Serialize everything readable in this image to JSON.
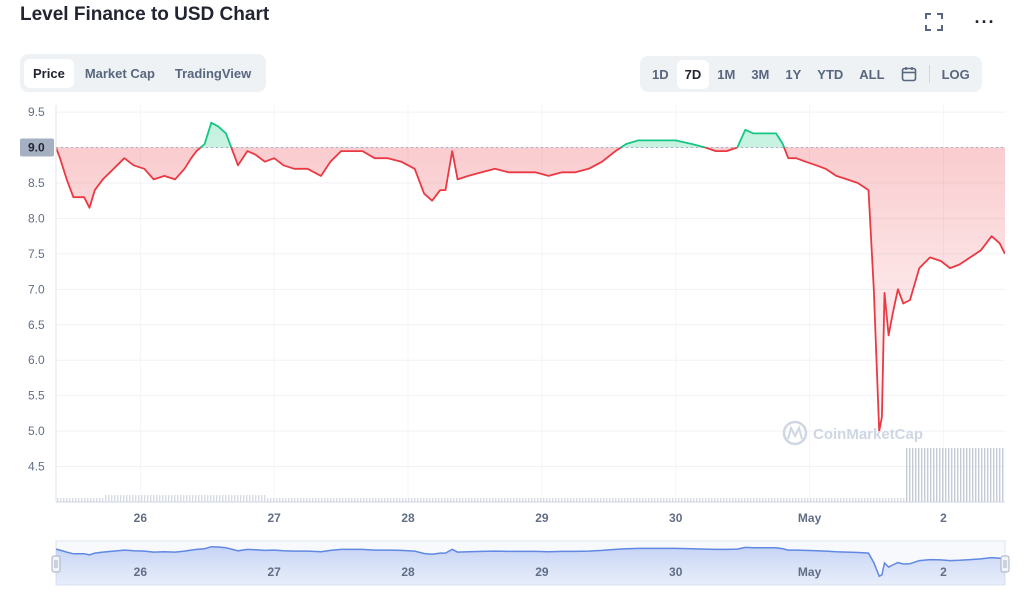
{
  "title": "Level Finance to USD Chart",
  "icons": {
    "fullscreen": "fullscreen-icon",
    "more": "more-horizontal-icon",
    "calendar": "calendar-icon",
    "watermark_logo": "coinmarketcap-logo-icon"
  },
  "more_label": "···",
  "tabs": [
    {
      "label": "Price",
      "active": true
    },
    {
      "label": "Market Cap",
      "active": false
    },
    {
      "label": "TradingView",
      "active": false
    }
  ],
  "ranges": [
    {
      "label": "1D",
      "active": false
    },
    {
      "label": "7D",
      "active": true
    },
    {
      "label": "1M",
      "active": false
    },
    {
      "label": "3M",
      "active": false
    },
    {
      "label": "1Y",
      "active": false
    },
    {
      "label": "YTD",
      "active": false
    },
    {
      "label": "ALL",
      "active": false
    }
  ],
  "log_label": "LOG",
  "watermark": "CoinMarketCap",
  "colors": {
    "up": "#16c784",
    "down": "#ea3943",
    "navigator": "#6188e3",
    "reference": "#222531"
  },
  "chart_data": {
    "type": "line",
    "y_ticks": [
      "9.5",
      "9.0",
      "8.5",
      "8.0",
      "7.5",
      "7.0",
      "6.5",
      "6.0",
      "5.5",
      "5.0",
      "4.5"
    ],
    "reference_label": "9.0",
    "reference_value": 9.0,
    "ylim": [
      4.0,
      9.6
    ],
    "x_ticks": [
      {
        "label": "26",
        "x": 1
      },
      {
        "label": "27",
        "x": 2
      },
      {
        "label": "28",
        "x": 3
      },
      {
        "label": "29",
        "x": 4
      },
      {
        "label": "30",
        "x": 5
      },
      {
        "label": "May",
        "x": 6
      },
      {
        "label": "2",
        "x": 7
      }
    ],
    "xlim": [
      0.37,
      7.46
    ],
    "grid": true,
    "series": [
      {
        "points": [
          [
            0.37,
            9.0
          ],
          [
            0.4,
            8.85
          ],
          [
            0.45,
            8.55
          ],
          [
            0.5,
            8.3
          ],
          [
            0.58,
            8.3
          ],
          [
            0.62,
            8.15
          ],
          [
            0.66,
            8.4
          ],
          [
            0.72,
            8.55
          ],
          [
            0.8,
            8.7
          ],
          [
            0.88,
            8.85
          ],
          [
            0.95,
            8.75
          ],
          [
            1.03,
            8.7
          ],
          [
            1.1,
            8.55
          ],
          [
            1.18,
            8.6
          ],
          [
            1.26,
            8.55
          ],
          [
            1.33,
            8.7
          ],
          [
            1.38,
            8.85
          ],
          [
            1.42,
            8.95
          ],
          [
            1.48,
            9.05
          ],
          [
            1.53,
            9.35
          ],
          [
            1.58,
            9.3
          ],
          [
            1.64,
            9.2
          ],
          [
            1.68,
            9.0
          ],
          [
            1.73,
            8.75
          ],
          [
            1.8,
            8.95
          ],
          [
            1.86,
            8.9
          ],
          [
            1.93,
            8.8
          ],
          [
            2.0,
            8.85
          ],
          [
            2.07,
            8.75
          ],
          [
            2.15,
            8.7
          ],
          [
            2.25,
            8.7
          ],
          [
            2.35,
            8.6
          ],
          [
            2.42,
            8.8
          ],
          [
            2.5,
            8.95
          ],
          [
            2.58,
            8.95
          ],
          [
            2.66,
            8.95
          ],
          [
            2.75,
            8.85
          ],
          [
            2.85,
            8.85
          ],
          [
            2.95,
            8.8
          ],
          [
            3.05,
            8.7
          ],
          [
            3.12,
            8.35
          ],
          [
            3.18,
            8.25
          ],
          [
            3.24,
            8.4
          ],
          [
            3.28,
            8.4
          ],
          [
            3.33,
            8.95
          ],
          [
            3.37,
            8.55
          ],
          [
            3.45,
            8.6
          ],
          [
            3.55,
            8.65
          ],
          [
            3.65,
            8.7
          ],
          [
            3.75,
            8.65
          ],
          [
            3.85,
            8.65
          ],
          [
            3.95,
            8.65
          ],
          [
            4.05,
            8.6
          ],
          [
            4.15,
            8.65
          ],
          [
            4.25,
            8.65
          ],
          [
            4.35,
            8.7
          ],
          [
            4.45,
            8.8
          ],
          [
            4.55,
            8.95
          ],
          [
            4.63,
            9.05
          ],
          [
            4.72,
            9.1
          ],
          [
            4.85,
            9.1
          ],
          [
            5.0,
            9.1
          ],
          [
            5.12,
            9.05
          ],
          [
            5.22,
            9.0
          ],
          [
            5.3,
            8.95
          ],
          [
            5.38,
            8.95
          ],
          [
            5.46,
            9.0
          ],
          [
            5.52,
            9.25
          ],
          [
            5.58,
            9.2
          ],
          [
            5.66,
            9.2
          ],
          [
            5.75,
            9.2
          ],
          [
            5.8,
            9.05
          ],
          [
            5.84,
            8.85
          ],
          [
            5.9,
            8.85
          ],
          [
            5.97,
            8.8
          ],
          [
            6.05,
            8.75
          ],
          [
            6.12,
            8.7
          ],
          [
            6.2,
            8.6
          ],
          [
            6.28,
            8.55
          ],
          [
            6.36,
            8.5
          ],
          [
            6.4,
            8.45
          ],
          [
            6.44,
            8.4
          ],
          [
            6.48,
            7.0
          ],
          [
            6.52,
            5.0
          ],
          [
            6.54,
            5.2
          ],
          [
            6.56,
            6.95
          ],
          [
            6.59,
            6.35
          ],
          [
            6.62,
            6.65
          ],
          [
            6.66,
            7.0
          ],
          [
            6.7,
            6.8
          ],
          [
            6.75,
            6.85
          ],
          [
            6.82,
            7.3
          ],
          [
            6.9,
            7.45
          ],
          [
            6.98,
            7.4
          ],
          [
            7.05,
            7.3
          ],
          [
            7.12,
            7.35
          ],
          [
            7.2,
            7.45
          ],
          [
            7.28,
            7.55
          ],
          [
            7.36,
            7.75
          ],
          [
            7.42,
            7.65
          ],
          [
            7.46,
            7.5
          ]
        ]
      }
    ],
    "navigator": {
      "x_ticks": [
        "26",
        "27",
        "28",
        "29",
        "30",
        "May",
        "2"
      ]
    }
  }
}
